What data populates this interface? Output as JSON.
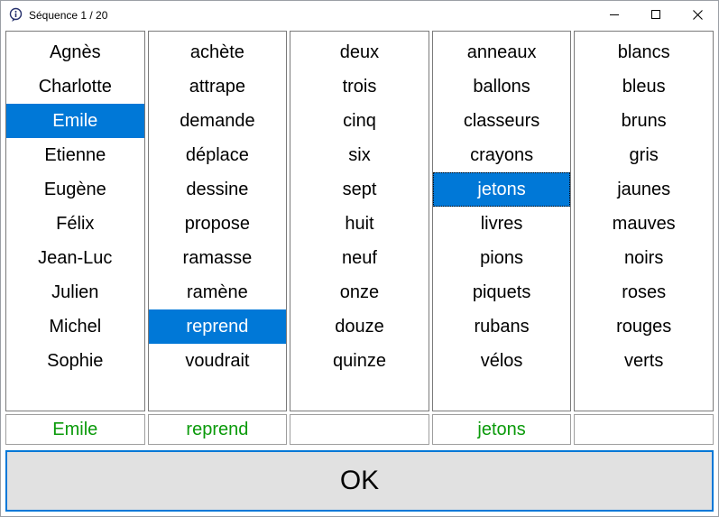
{
  "window": {
    "title": "Séquence 1 / 20",
    "icon": "info-speech-bubble-icon"
  },
  "titlebar_controls": [
    {
      "name": "minimize-button",
      "icon": "minimize-icon"
    },
    {
      "name": "maximize-button",
      "icon": "maximize-icon"
    },
    {
      "name": "close-button",
      "icon": "close-icon"
    }
  ],
  "columns": [
    {
      "name": "subjects",
      "items": [
        "Agnès",
        "Charlotte",
        "Emile",
        "Etienne",
        "Eugène",
        "Félix",
        "Jean-Luc",
        "Julien",
        "Michel",
        "Sophie"
      ],
      "selected_index": 2,
      "focused": false
    },
    {
      "name": "verbs",
      "items": [
        "achète",
        "attrape",
        "demande",
        "déplace",
        "dessine",
        "propose",
        "ramasse",
        "ramène",
        "reprend",
        "voudrait"
      ],
      "selected_index": 8,
      "focused": false
    },
    {
      "name": "numbers",
      "items": [
        "deux",
        "trois",
        "cinq",
        "six",
        "sept",
        "huit",
        "neuf",
        "onze",
        "douze",
        "quinze"
      ],
      "selected_index": null,
      "focused": false
    },
    {
      "name": "objects",
      "items": [
        "anneaux",
        "ballons",
        "classeurs",
        "crayons",
        "jetons",
        "livres",
        "pions",
        "piquets",
        "rubans",
        "vélos"
      ],
      "selected_index": 4,
      "focused": true
    },
    {
      "name": "colors",
      "items": [
        "blancs",
        "bleus",
        "bruns",
        "gris",
        "jaunes",
        "mauves",
        "noirs",
        "roses",
        "rouges",
        "verts"
      ],
      "selected_index": null,
      "focused": false
    }
  ],
  "answers": [
    "Emile",
    "reprend",
    "",
    "jetons",
    ""
  ],
  "footer": {
    "ok_label": "OK"
  },
  "colors": {
    "selection_bg": "#0078d7",
    "selection_text": "#ffffff",
    "answer_text": "#0a9a0a",
    "ok_button_bg": "#e1e1e1",
    "ok_button_border": "#0078d7",
    "listbox_border": "#7a7a7a"
  }
}
